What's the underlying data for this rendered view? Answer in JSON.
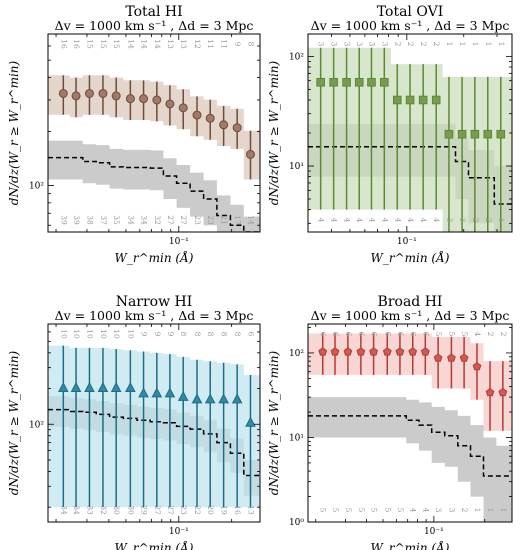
{
  "chart_data": [
    {
      "type": "line",
      "title": "Total HI",
      "subtitle": "Δv = 1000 km s⁻¹ , Δd = 3 Mpc",
      "xlabel": "W_r^min (Å)",
      "ylabel": "dN/dz(W_r ≥ W_r^min)",
      "x_scale": "log",
      "y_scale": "log",
      "xlim": [
        0.018,
        0.29
      ],
      "ylim": [
        55,
        700
      ],
      "y_ticks": [
        {
          "v": 100,
          "label": "10²"
        }
      ],
      "x_ticks": [
        {
          "v": 0.1,
          "label": "10⁻¹"
        }
      ],
      "colors": {
        "band": "#d8c4b4",
        "edge": "#6e4b3a",
        "marker": "#a07a66",
        "random": "#c8c8c8"
      },
      "marker": "circle",
      "x": [
        0.022,
        0.026,
        0.031,
        0.037,
        0.044,
        0.053,
        0.063,
        0.075,
        0.089,
        0.106,
        0.127,
        0.151,
        0.18,
        0.215,
        0.256
      ],
      "dN_dz": [
        326,
        316,
        326,
        326,
        316,
        305,
        305,
        300,
        285,
        271,
        247,
        237,
        218,
        210,
        149
      ],
      "err_low": [
        248,
        240,
        248,
        248,
        240,
        232,
        232,
        228,
        216,
        206,
        188,
        180,
        166,
        160,
        108
      ],
      "err_high": [
        412,
        400,
        412,
        412,
        400,
        386,
        386,
        380,
        362,
        344,
        314,
        301,
        278,
        268,
        202
      ],
      "random_median": [
        143,
        143,
        136,
        134,
        127,
        126,
        126,
        125,
        113,
        103,
        93,
        84,
        68,
        60,
        51
      ],
      "random_low": [
        108,
        108,
        103,
        101,
        96,
        95,
        95,
        94,
        84,
        75,
        67,
        60,
        47,
        41,
        35
      ],
      "random_high": [
        178,
        178,
        170,
        168,
        160,
        158,
        158,
        157,
        142,
        130,
        118,
        107,
        88,
        78,
        67
      ],
      "counts_top": [
        "16",
        "16",
        "15",
        "15",
        "15",
        "14",
        "14",
        "14",
        "13",
        "13",
        "12",
        "11",
        "11",
        "9",
        "8"
      ],
      "counts_bottom": [
        "39",
        "39",
        "38",
        "37",
        "35",
        "34",
        "34",
        "32",
        "27",
        "27",
        "23",
        "23",
        "21",
        "17",
        "14"
      ]
    },
    {
      "type": "line",
      "title": "Total OVI",
      "subtitle": "Δv = 1000 km s⁻¹ , Δd = 3 Mpc",
      "xlabel": "W_r^min (Å)",
      "ylabel": "dN/dz(W_r ≥ W_r^min)",
      "x_scale": "log",
      "y_scale": "log",
      "xlim": [
        0.03,
        0.36
      ],
      "ylim": [
        2.5,
        160
      ],
      "y_ticks": [
        {
          "v": 10,
          "label": "10¹"
        },
        {
          "v": 100,
          "label": "10²"
        }
      ],
      "x_ticks": [
        {
          "v": 0.1,
          "label": "10⁻¹"
        }
      ],
      "colors": {
        "band": "#c8dcb8",
        "edge": "#5a8a32",
        "marker": "#7a9a52",
        "random": "#c8c8c8"
      },
      "marker": "square",
      "x": [
        0.035,
        0.041,
        0.048,
        0.056,
        0.065,
        0.076,
        0.089,
        0.104,
        0.122,
        0.143,
        0.167,
        0.196,
        0.229,
        0.268,
        0.314
      ],
      "dN_dz": [
        58,
        58,
        58,
        58,
        58,
        58,
        40,
        40,
        40,
        40,
        19.5,
        19.5,
        19.5,
        19.5,
        19.5
      ],
      "err_low": [
        4,
        4,
        4,
        4,
        4,
        4,
        4,
        4,
        4,
        4,
        2.5,
        2.5,
        2.5,
        2.5,
        2.5
      ],
      "err_high": [
        120,
        120,
        120,
        120,
        120,
        120,
        85,
        85,
        85,
        85,
        65,
        65,
        65,
        65,
        65
      ],
      "random_median": [
        15,
        15,
        15,
        15,
        15,
        15,
        15,
        15,
        15,
        15,
        15,
        11,
        7.8,
        7.8,
        4.5
      ],
      "random_low": [
        8,
        8,
        8,
        8,
        8,
        8,
        8,
        8,
        8,
        8,
        8,
        5,
        3,
        3,
        2.5
      ],
      "random_high": [
        24,
        24,
        24,
        24,
        24,
        24,
        24,
        24,
        24,
        24,
        24,
        18,
        14,
        14,
        10
      ],
      "counts_top": [
        "3",
        "3",
        "3",
        "3",
        "3",
        "3",
        "2",
        "2",
        "2",
        "2",
        "1",
        "1",
        "1",
        "1",
        "1"
      ],
      "counts_bottom": [
        "4",
        "4",
        "4",
        "4",
        "4",
        "4",
        "4",
        "4",
        "4",
        "4",
        "3",
        "3",
        "2",
        "2",
        "1"
      ]
    },
    {
      "type": "line",
      "title": "Narrow HI",
      "subtitle": "Δv = 1000 km s⁻¹ , Δd = 3 Mpc",
      "xlabel": "W_r^min (Å)",
      "ylabel": "dN/dz(W_r ≥ W_r^min)",
      "x_scale": "log",
      "y_scale": "log",
      "xlim": [
        0.018,
        0.29
      ],
      "ylim": [
        15,
        700
      ],
      "y_ticks": [
        {
          "v": 100,
          "label": "10²"
        }
      ],
      "x_ticks": [
        {
          "v": 0.1,
          "label": "10⁻¹"
        }
      ],
      "colors": {
        "band": "#bde3ee",
        "edge": "#1d6d86",
        "marker": "#2f8aa6",
        "random": "#c8c8c8"
      },
      "marker": "triangle",
      "x": [
        0.022,
        0.026,
        0.031,
        0.037,
        0.044,
        0.053,
        0.063,
        0.075,
        0.089,
        0.106,
        0.127,
        0.151,
        0.18,
        0.215,
        0.256
      ],
      "dN_dz": [
        202,
        202,
        202,
        202,
        202,
        202,
        182,
        182,
        182,
        170,
        162,
        162,
        162,
        162,
        103
      ],
      "err_low": [
        20,
        20,
        20,
        20,
        20,
        20,
        20,
        20,
        20,
        20,
        20,
        20,
        20,
        20,
        20
      ],
      "err_high": [
        460,
        440,
        440,
        440,
        430,
        420,
        410,
        400,
        390,
        370,
        350,
        340,
        330,
        320,
        260
      ],
      "random_median": [
        133,
        128,
        126,
        121,
        115,
        112,
        108,
        105,
        103,
        96,
        91,
        83,
        70,
        57,
        37
      ],
      "random_low": [
        95,
        92,
        90,
        86,
        82,
        80,
        77,
        75,
        73,
        68,
        64,
        58,
        48,
        39,
        25
      ],
      "random_high": [
        172,
        166,
        163,
        157,
        150,
        146,
        141,
        137,
        134,
        125,
        118,
        108,
        92,
        76,
        50
      ],
      "counts_top": [
        "10",
        "10",
        "10",
        "10",
        "10",
        "10",
        "9",
        "9",
        "9",
        "8",
        "8",
        "8",
        "8",
        "8",
        "6"
      ],
      "counts_bottom": [
        "34",
        "34",
        "33",
        "32",
        "30",
        "30",
        "29",
        "27",
        "27",
        "23",
        "22",
        "20",
        "19",
        "16",
        "13"
      ]
    },
    {
      "type": "line",
      "title": "Broad HI",
      "subtitle": "Δv = 1000 km s⁻¹ , Δd = 3 Mpc",
      "xlabel": "W_r^min (Å)",
      "ylabel": "dN/dz(W_r ≥ W_r^min)",
      "x_scale": "log",
      "y_scale": "log",
      "xlim": [
        0.018,
        0.29
      ],
      "ylim": [
        1,
        220
      ],
      "y_ticks": [
        {
          "v": 1,
          "label": "10⁰"
        },
        {
          "v": 10,
          "label": "10¹"
        },
        {
          "v": 100,
          "label": "10²"
        }
      ],
      "x_ticks": [
        {
          "v": 0.1,
          "label": "10⁻¹"
        }
      ],
      "colors": {
        "band": "#f3c4c2",
        "edge": "#b53a34",
        "marker": "#cf5a50",
        "random": "#c8c8c8"
      },
      "marker": "pentagon",
      "x": [
        0.022,
        0.026,
        0.031,
        0.037,
        0.044,
        0.053,
        0.063,
        0.075,
        0.089,
        0.106,
        0.127,
        0.151,
        0.18,
        0.215,
        0.256
      ],
      "dN_dz": [
        103,
        103,
        103,
        103,
        103,
        103,
        103,
        103,
        103,
        87,
        87,
        87,
        69,
        34,
        34
      ],
      "err_low": [
        55,
        55,
        55,
        55,
        55,
        55,
        55,
        55,
        55,
        38,
        38,
        38,
        28,
        12,
        12
      ],
      "err_high": [
        170,
        170,
        170,
        170,
        170,
        170,
        170,
        170,
        170,
        155,
        155,
        155,
        130,
        80,
        80
      ],
      "random_median": [
        18,
        18,
        18,
        18,
        18,
        18,
        18,
        16,
        14,
        11.5,
        10.5,
        8,
        6,
        3.5,
        3.5
      ],
      "random_low": [
        10,
        10,
        10,
        10,
        10,
        10,
        10,
        8.5,
        7,
        5,
        4.5,
        3,
        2,
        1,
        1
      ],
      "random_high": [
        30,
        30,
        30,
        30,
        30,
        30,
        30,
        28,
        26,
        23,
        21,
        18,
        14,
        10,
        8
      ],
      "counts_top": [
        "6",
        "6",
        "6",
        "6",
        "6",
        "6",
        "6",
        "6",
        "6",
        "5",
        "5",
        "5",
        "4",
        "2",
        "2"
      ],
      "counts_bottom": [
        "5",
        "5",
        "5",
        "5",
        "5",
        "5",
        "5",
        "4",
        "4",
        "3",
        "3",
        "2",
        "1",
        "1",
        "1"
      ]
    }
  ]
}
